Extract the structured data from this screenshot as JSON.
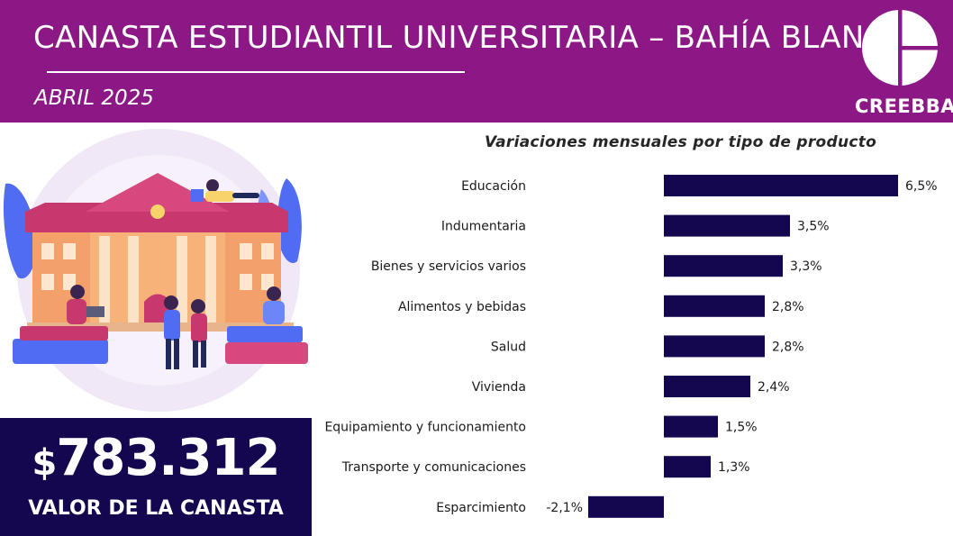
{
  "header": {
    "title": "CANASTA ESTUDIANTIL UNIVERSITARIA – BAHÍA BLANCA",
    "date": "ABRIL 2025",
    "brand": "CREEBBA"
  },
  "value_box": {
    "currency": "$",
    "amount": "783.312",
    "caption": "VALOR DE LA CANASTA"
  },
  "colors": {
    "header_bg": "#8c1886",
    "bar": "#14064f",
    "value_box_bg": "#14064f"
  },
  "chart_data": {
    "type": "bar",
    "orientation": "horizontal",
    "title": "Variaciones mensuales por tipo de producto",
    "categories": [
      "Educación",
      "Indumentaria",
      "Bienes y servicios varios",
      "Alimentos y bebidas",
      "Salud",
      "Vivienda",
      "Equipamiento y funcionamiento",
      "Transporte y comunicaciones",
      "Esparcimiento"
    ],
    "values": [
      6.5,
      3.5,
      3.3,
      2.8,
      2.8,
      2.4,
      1.5,
      1.3,
      -2.1
    ],
    "value_labels": [
      "6,5%",
      "3,5%",
      "3,3%",
      "2,8%",
      "2,8%",
      "2,4%",
      "1,5%",
      "1,3%",
      "-2,1%"
    ],
    "xlim": [
      -2.1,
      6.5
    ],
    "grid": false,
    "legend": "none"
  }
}
